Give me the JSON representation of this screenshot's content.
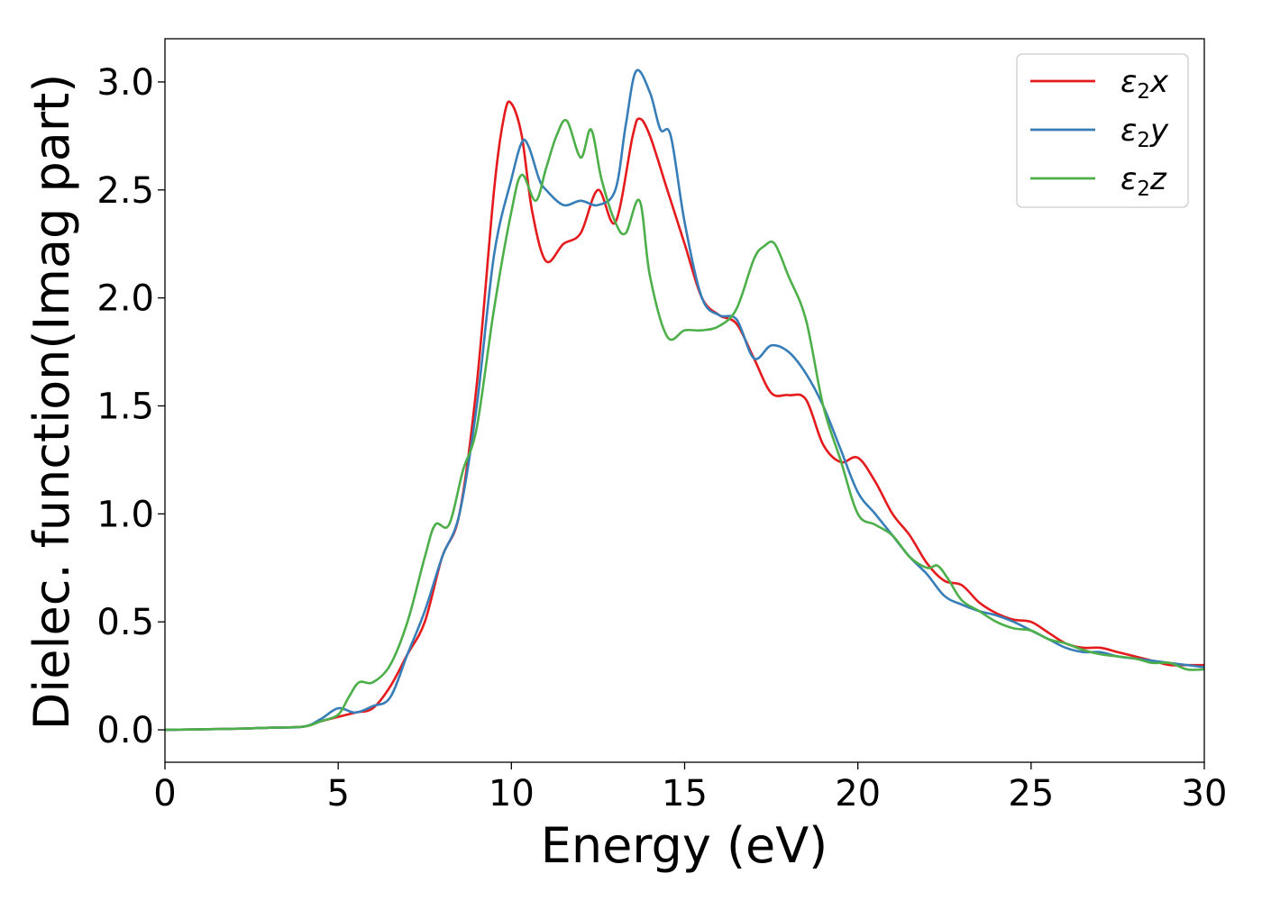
{
  "chart_data": {
    "type": "line",
    "title": "",
    "xlabel": "Energy (eV)",
    "ylabel": "Dielec. function(Imag part)",
    "xlim": [
      0,
      30
    ],
    "ylim": [
      -0.15,
      3.2
    ],
    "xticks": [
      0,
      5,
      10,
      15,
      20,
      25,
      30
    ],
    "xtick_labels": [
      "0",
      "5",
      "10",
      "15",
      "20",
      "25",
      "30"
    ],
    "yticks": [
      0.0,
      0.5,
      1.0,
      1.5,
      2.0,
      2.5,
      3.0
    ],
    "ytick_labels": [
      "0.0",
      "0.5",
      "1.0",
      "1.5",
      "2.0",
      "2.5",
      "3.0"
    ],
    "grid": false,
    "legend_position": "top-right",
    "series": [
      {
        "name": "ε₂x",
        "legend_main": "ε",
        "legend_sub": "2",
        "legend_suffix": "x",
        "color": "#e41a1c",
        "x": [
          0,
          2,
          3,
          4,
          4.5,
          5,
          5.5,
          6,
          6.5,
          7,
          7.5,
          8,
          8.5,
          9,
          9.5,
          9.8,
          10,
          10.3,
          10.6,
          11,
          11.5,
          12,
          12.5,
          13,
          13.5,
          13.7,
          14,
          14.5,
          15,
          15.5,
          16,
          16.5,
          17,
          17.5,
          18,
          18.5,
          19,
          19.5,
          20,
          20.5,
          21,
          21.5,
          22,
          22.5,
          23,
          23.5,
          24,
          24.5,
          25,
          25.5,
          26,
          26.5,
          27,
          27.5,
          28,
          28.5,
          29,
          29.5,
          30
        ],
        "y": [
          0,
          0.005,
          0.01,
          0.015,
          0.04,
          0.06,
          0.08,
          0.1,
          0.2,
          0.35,
          0.5,
          0.8,
          1.0,
          1.6,
          2.5,
          2.85,
          2.9,
          2.75,
          2.4,
          2.17,
          2.25,
          2.3,
          2.5,
          2.35,
          2.75,
          2.83,
          2.75,
          2.5,
          2.25,
          2.0,
          1.92,
          1.88,
          1.72,
          1.56,
          1.55,
          1.53,
          1.32,
          1.24,
          1.26,
          1.15,
          1.0,
          0.9,
          0.77,
          0.69,
          0.67,
          0.59,
          0.54,
          0.51,
          0.5,
          0.45,
          0.4,
          0.38,
          0.38,
          0.36,
          0.34,
          0.32,
          0.3,
          0.3,
          0.3
        ]
      },
      {
        "name": "ε₂y",
        "legend_main": "ε",
        "legend_sub": "2",
        "legend_suffix": "y",
        "color": "#377eb8",
        "x": [
          0,
          2,
          3,
          4,
          4.5,
          5,
          5.5,
          6,
          6.5,
          7,
          7.5,
          8,
          8.5,
          9,
          9.5,
          10,
          10.3,
          10.5,
          10.8,
          11,
          11.5,
          12,
          12.5,
          13,
          13.3,
          13.6,
          14,
          14.3,
          14.6,
          15,
          15.5,
          16,
          16.5,
          17,
          17.5,
          18,
          18.5,
          19,
          19.5,
          20,
          20.5,
          21,
          21.5,
          22,
          22.5,
          23,
          23.5,
          24,
          24.5,
          25,
          25.5,
          26,
          26.5,
          27,
          27.5,
          28,
          28.5,
          29,
          29.5,
          30
        ],
        "y": [
          0,
          0.005,
          0.01,
          0.015,
          0.05,
          0.1,
          0.08,
          0.11,
          0.15,
          0.35,
          0.55,
          0.8,
          1.0,
          1.5,
          2.2,
          2.55,
          2.72,
          2.7,
          2.55,
          2.5,
          2.43,
          2.45,
          2.43,
          2.5,
          2.8,
          3.05,
          2.95,
          2.78,
          2.75,
          2.35,
          2.0,
          1.92,
          1.9,
          1.72,
          1.78,
          1.75,
          1.65,
          1.5,
          1.3,
          1.1,
          1.0,
          0.9,
          0.8,
          0.72,
          0.62,
          0.58,
          0.55,
          0.53,
          0.5,
          0.46,
          0.42,
          0.38,
          0.36,
          0.36,
          0.34,
          0.33,
          0.32,
          0.31,
          0.3,
          0.29
        ]
      },
      {
        "name": "ε₂z",
        "legend_main": "ε",
        "legend_sub": "2",
        "legend_suffix": "z",
        "color": "#4daf4a",
        "x": [
          0,
          2,
          3,
          4,
          4.5,
          5,
          5.3,
          5.6,
          6,
          6.5,
          7,
          7.5,
          7.8,
          8.2,
          8.6,
          9,
          9.5,
          10,
          10.3,
          10.7,
          11,
          11.3,
          11.6,
          12,
          12.3,
          12.6,
          13,
          13.3,
          13.7,
          14,
          14.5,
          15,
          15.5,
          16,
          16.5,
          17,
          17.3,
          17.6,
          18,
          18.5,
          19,
          19.5,
          20,
          20.5,
          21,
          21.5,
          22,
          22.3,
          22.6,
          23,
          23.5,
          24,
          24.5,
          25,
          25.5,
          26,
          26.5,
          27,
          27.5,
          28,
          28.5,
          29,
          29.5,
          30
        ],
        "y": [
          0,
          0.005,
          0.01,
          0.015,
          0.04,
          0.07,
          0.15,
          0.22,
          0.22,
          0.3,
          0.5,
          0.8,
          0.95,
          0.95,
          1.2,
          1.4,
          1.95,
          2.4,
          2.57,
          2.45,
          2.6,
          2.75,
          2.82,
          2.65,
          2.78,
          2.55,
          2.35,
          2.3,
          2.45,
          2.1,
          1.82,
          1.85,
          1.85,
          1.87,
          1.95,
          2.18,
          2.24,
          2.25,
          2.1,
          1.9,
          1.5,
          1.25,
          1.0,
          0.95,
          0.9,
          0.8,
          0.75,
          0.76,
          0.7,
          0.6,
          0.55,
          0.5,
          0.47,
          0.46,
          0.42,
          0.4,
          0.37,
          0.35,
          0.34,
          0.33,
          0.31,
          0.31,
          0.28,
          0.28
        ]
      }
    ]
  }
}
